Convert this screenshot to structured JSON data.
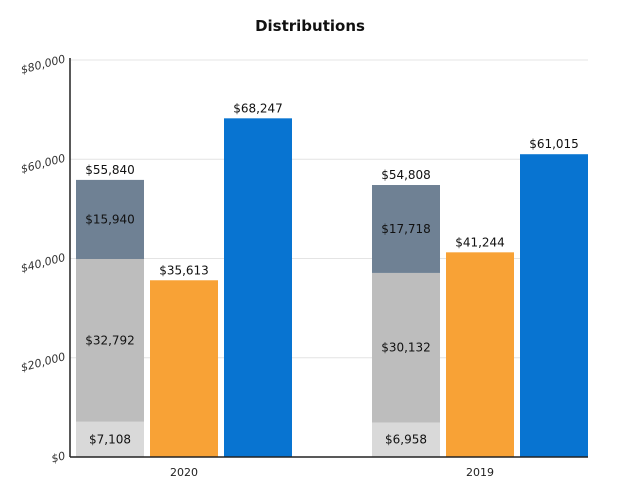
{
  "chart_data": {
    "type": "bar",
    "title": "Distributions",
    "xlabel": "",
    "ylabel": "",
    "ylim": [
      0,
      80000
    ],
    "ytick_values": [
      0,
      20000,
      40000,
      60000,
      80000
    ],
    "ytick_labels": [
      "$0",
      "$20,000",
      "$40,000",
      "$60,000",
      "$80,000"
    ],
    "grid": true,
    "legend": "none",
    "categories": [
      "2020",
      "2019"
    ],
    "groups": [
      {
        "category": "2020",
        "bars": [
          {
            "name": "stacked",
            "total": 55840,
            "total_label": "$55,840",
            "segments": [
              {
                "value": 7108,
                "label": "$7,108",
                "color": "#d9d9d9"
              },
              {
                "value": 32792,
                "label": "$32,792",
                "color": "#bdbdbd"
              },
              {
                "value": 15940,
                "label": "$15,940",
                "color": "#6f8194"
              }
            ]
          },
          {
            "name": "orange",
            "value": 35613,
            "label": "$35,613",
            "color": "#f8a236"
          },
          {
            "name": "blue",
            "value": 68247,
            "label": "$68,247",
            "color": "#0874d1"
          }
        ]
      },
      {
        "category": "2019",
        "bars": [
          {
            "name": "stacked",
            "total": 54808,
            "total_label": "$54,808",
            "segments": [
              {
                "value": 6958,
                "label": "$6,958",
                "color": "#d9d9d9"
              },
              {
                "value": 30132,
                "label": "$30,132",
                "color": "#bdbdbd"
              },
              {
                "value": 17718,
                "label": "$17,718",
                "color": "#6f8194"
              }
            ]
          },
          {
            "name": "orange",
            "value": 41244,
            "label": "$41,244",
            "color": "#f8a236"
          },
          {
            "name": "blue",
            "value": 61015,
            "label": "$61,015",
            "color": "#0874d1"
          }
        ]
      }
    ]
  }
}
